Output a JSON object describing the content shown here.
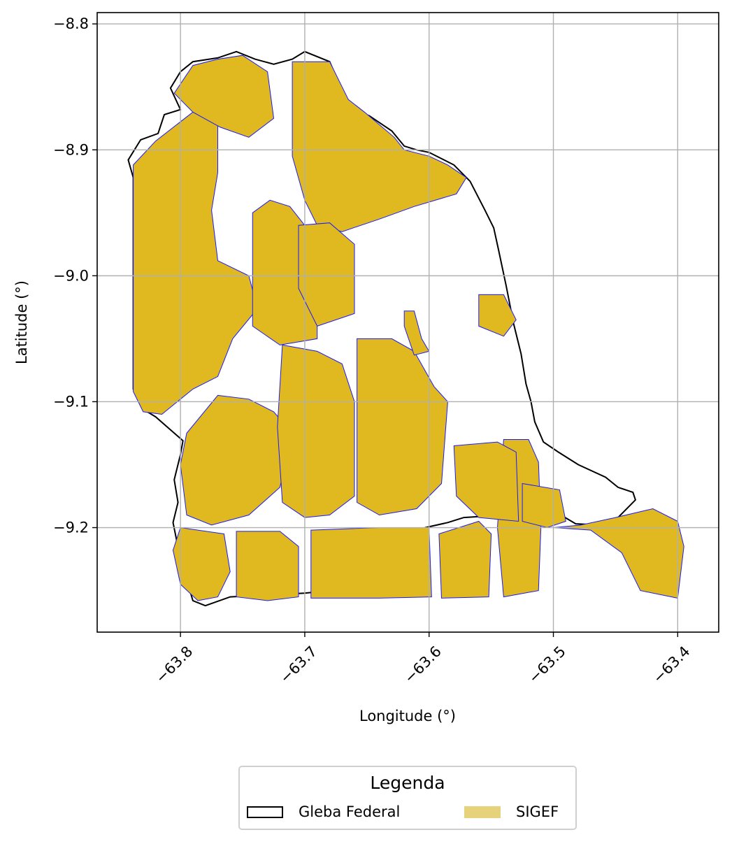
{
  "chart_data": {
    "type": "map",
    "xlabel": "Longitude (°)",
    "ylabel": "Latitude (°)",
    "xlim": [
      -63.867,
      -63.367
    ],
    "ylim": [
      -9.283,
      -8.791
    ],
    "xticks": [
      -63.8,
      -63.7,
      -63.6,
      -63.5,
      -63.4
    ],
    "xtick_labels": [
      "−63.8",
      "−63.7",
      "−63.6",
      "−63.5",
      "−63.4"
    ],
    "yticks": [
      -8.8,
      -8.9,
      -9.0,
      -9.1,
      -9.2
    ],
    "ytick_labels": [
      "−8.8",
      "−8.9",
      "−9.0",
      "−9.1",
      "−9.2"
    ],
    "grid": true,
    "gleba_outline": [
      [
        -63.842,
        -8.908
      ],
      [
        -63.832,
        -8.892
      ],
      [
        -63.818,
        -8.887
      ],
      [
        -63.813,
        -8.872
      ],
      [
        -63.8,
        -8.868
      ],
      [
        -63.808,
        -8.851
      ],
      [
        -63.8,
        -8.838
      ],
      [
        -63.79,
        -8.83
      ],
      [
        -63.77,
        -8.827
      ],
      [
        -63.755,
        -8.822
      ],
      [
        -63.74,
        -8.828
      ],
      [
        -63.725,
        -8.832
      ],
      [
        -63.71,
        -8.828
      ],
      [
        -63.7,
        -8.822
      ],
      [
        -63.68,
        -8.83
      ],
      [
        -63.67,
        -8.853
      ],
      [
        -63.66,
        -8.868
      ],
      [
        -63.648,
        -8.873
      ],
      [
        -63.63,
        -8.885
      ],
      [
        -63.62,
        -8.897
      ],
      [
        -63.61,
        -8.9
      ],
      [
        -63.6,
        -8.902
      ],
      [
        -63.59,
        -8.907
      ],
      [
        -63.58,
        -8.912
      ],
      [
        -63.567,
        -8.925
      ],
      [
        -63.555,
        -8.948
      ],
      [
        -63.548,
        -8.962
      ],
      [
        -63.544,
        -8.98
      ],
      [
        -63.538,
        -9.008
      ],
      [
        -63.532,
        -9.038
      ],
      [
        -63.526,
        -9.062
      ],
      [
        -63.522,
        -9.086
      ],
      [
        -63.518,
        -9.1
      ],
      [
        -63.515,
        -9.116
      ],
      [
        -63.508,
        -9.132
      ],
      [
        -63.496,
        -9.14
      ],
      [
        -63.48,
        -9.15
      ],
      [
        -63.458,
        -9.16
      ],
      [
        -63.448,
        -9.168
      ],
      [
        -63.436,
        -9.172
      ],
      [
        -63.434,
        -9.178
      ],
      [
        -63.448,
        -9.192
      ],
      [
        -63.46,
        -9.198
      ],
      [
        -63.482,
        -9.197
      ],
      [
        -63.494,
        -9.19
      ],
      [
        -63.51,
        -9.188
      ],
      [
        -63.54,
        -9.19
      ],
      [
        -63.572,
        -9.192
      ],
      [
        -63.585,
        -9.196
      ],
      [
        -63.603,
        -9.2
      ],
      [
        -63.62,
        -9.21
      ],
      [
        -63.65,
        -9.232
      ],
      [
        -63.68,
        -9.25
      ],
      [
        -63.7,
        -9.252
      ],
      [
        -63.76,
        -9.255
      ],
      [
        -63.78,
        -9.262
      ],
      [
        -63.79,
        -9.258
      ],
      [
        -63.8,
        -9.225
      ],
      [
        -63.806,
        -9.196
      ],
      [
        -63.802,
        -9.18
      ],
      [
        -63.805,
        -9.162
      ],
      [
        -63.8,
        -9.142
      ],
      [
        -63.798,
        -9.131
      ],
      [
        -63.82,
        -9.112
      ],
      [
        -63.83,
        -9.106
      ],
      [
        -63.838,
        -9.09
      ],
      [
        -63.838,
        -9.06
      ],
      [
        -63.838,
        -9.0
      ],
      [
        -63.838,
        -8.922
      ],
      [
        -63.842,
        -8.908
      ]
    ],
    "sigef_polygons": [
      [
        [
          -63.838,
          -8.912
        ],
        [
          -63.82,
          -8.893
        ],
        [
          -63.79,
          -8.87
        ],
        [
          -63.778,
          -8.862
        ],
        [
          -63.77,
          -8.872
        ],
        [
          -63.77,
          -8.918
        ],
        [
          -63.775,
          -8.948
        ],
        [
          -63.77,
          -8.988
        ],
        [
          -63.745,
          -9.0
        ],
        [
          -63.738,
          -9.026
        ],
        [
          -63.758,
          -9.05
        ],
        [
          -63.77,
          -9.08
        ],
        [
          -63.79,
          -9.09
        ],
        [
          -63.815,
          -9.11
        ],
        [
          -63.83,
          -9.108
        ],
        [
          -63.838,
          -9.092
        ],
        [
          -63.838,
          -8.912
        ]
      ],
      [
        [
          -63.805,
          -8.855
        ],
        [
          -63.79,
          -8.833
        ],
        [
          -63.77,
          -8.828
        ],
        [
          -63.75,
          -8.825
        ],
        [
          -63.73,
          -8.838
        ],
        [
          -63.725,
          -8.875
        ],
        [
          -63.745,
          -8.89
        ],
        [
          -63.768,
          -8.882
        ],
        [
          -63.79,
          -8.87
        ],
        [
          -63.805,
          -8.855
        ]
      ],
      [
        [
          -63.742,
          -8.95
        ],
        [
          -63.728,
          -8.94
        ],
        [
          -63.712,
          -8.945
        ],
        [
          -63.7,
          -8.96
        ],
        [
          -63.69,
          -8.972
        ],
        [
          -63.69,
          -9.05
        ],
        [
          -63.72,
          -9.055
        ],
        [
          -63.742,
          -9.04
        ],
        [
          -63.742,
          -8.95
        ]
      ],
      [
        [
          -63.71,
          -8.83
        ],
        [
          -63.68,
          -8.83
        ],
        [
          -63.665,
          -8.86
        ],
        [
          -63.652,
          -8.87
        ],
        [
          -63.628,
          -8.89
        ],
        [
          -63.62,
          -8.9
        ],
        [
          -63.6,
          -8.905
        ],
        [
          -63.585,
          -8.912
        ],
        [
          -63.57,
          -8.922
        ],
        [
          -63.578,
          -8.935
        ],
        [
          -63.612,
          -8.945
        ],
        [
          -63.64,
          -8.955
        ],
        [
          -63.67,
          -8.965
        ],
        [
          -63.69,
          -8.96
        ],
        [
          -63.7,
          -8.94
        ],
        [
          -63.71,
          -8.905
        ],
        [
          -63.71,
          -8.83
        ]
      ],
      [
        [
          -63.705,
          -8.96
        ],
        [
          -63.68,
          -8.958
        ],
        [
          -63.66,
          -8.975
        ],
        [
          -63.66,
          -9.03
        ],
        [
          -63.69,
          -9.04
        ],
        [
          -63.705,
          -9.01
        ],
        [
          -63.705,
          -8.96
        ]
      ],
      [
        [
          -63.77,
          -9.095
        ],
        [
          -63.745,
          -9.098
        ],
        [
          -63.725,
          -9.108
        ],
        [
          -63.71,
          -9.125
        ],
        [
          -63.72,
          -9.168
        ],
        [
          -63.745,
          -9.19
        ],
        [
          -63.775,
          -9.198
        ],
        [
          -63.795,
          -9.19
        ],
        [
          -63.8,
          -9.15
        ],
        [
          -63.795,
          -9.125
        ],
        [
          -63.77,
          -9.095
        ]
      ],
      [
        [
          -63.718,
          -9.055
        ],
        [
          -63.69,
          -9.06
        ],
        [
          -63.67,
          -9.07
        ],
        [
          -63.66,
          -9.1
        ],
        [
          -63.66,
          -9.175
        ],
        [
          -63.68,
          -9.19
        ],
        [
          -63.7,
          -9.192
        ],
        [
          -63.718,
          -9.18
        ],
        [
          -63.722,
          -9.12
        ],
        [
          -63.718,
          -9.055
        ]
      ],
      [
        [
          -63.658,
          -9.05
        ],
        [
          -63.63,
          -9.05
        ],
        [
          -63.612,
          -9.06
        ],
        [
          -63.596,
          -9.088
        ],
        [
          -63.585,
          -9.1
        ],
        [
          -63.59,
          -9.165
        ],
        [
          -63.61,
          -9.185
        ],
        [
          -63.64,
          -9.19
        ],
        [
          -63.658,
          -9.18
        ],
        [
          -63.658,
          -9.05
        ]
      ],
      [
        [
          -63.8,
          -9.2
        ],
        [
          -63.806,
          -9.218
        ],
        [
          -63.8,
          -9.245
        ],
        [
          -63.786,
          -9.258
        ],
        [
          -63.77,
          -9.255
        ],
        [
          -63.76,
          -9.235
        ],
        [
          -63.765,
          -9.205
        ],
        [
          -63.8,
          -9.2
        ]
      ],
      [
        [
          -63.755,
          -9.203
        ],
        [
          -63.72,
          -9.203
        ],
        [
          -63.705,
          -9.215
        ],
        [
          -63.705,
          -9.255
        ],
        [
          -63.73,
          -9.258
        ],
        [
          -63.755,
          -9.255
        ],
        [
          -63.755,
          -9.203
        ]
      ],
      [
        [
          -63.695,
          -9.202
        ],
        [
          -63.64,
          -9.2
        ],
        [
          -63.6,
          -9.2
        ],
        [
          -63.598,
          -9.255
        ],
        [
          -63.64,
          -9.256
        ],
        [
          -63.695,
          -9.256
        ],
        [
          -63.695,
          -9.202
        ]
      ],
      [
        [
          -63.56,
          -9.195
        ],
        [
          -63.55,
          -9.205
        ],
        [
          -63.552,
          -9.255
        ],
        [
          -63.59,
          -9.256
        ],
        [
          -63.592,
          -9.205
        ],
        [
          -63.56,
          -9.195
        ]
      ],
      [
        [
          -63.54,
          -9.13
        ],
        [
          -63.52,
          -9.13
        ],
        [
          -63.512,
          -9.148
        ],
        [
          -63.51,
          -9.2
        ],
        [
          -63.512,
          -9.25
        ],
        [
          -63.54,
          -9.255
        ],
        [
          -63.545,
          -9.2
        ],
        [
          -63.54,
          -9.13
        ]
      ],
      [
        [
          -63.5,
          -9.2
        ],
        [
          -63.47,
          -9.202
        ],
        [
          -63.445,
          -9.22
        ],
        [
          -63.43,
          -9.25
        ],
        [
          -63.4,
          -9.256
        ],
        [
          -63.395,
          -9.215
        ],
        [
          -63.4,
          -9.195
        ],
        [
          -63.42,
          -9.185
        ],
        [
          -63.45,
          -9.192
        ],
        [
          -63.478,
          -9.198
        ],
        [
          -63.5,
          -9.2
        ]
      ],
      [
        [
          -63.525,
          -9.165
        ],
        [
          -63.495,
          -9.17
        ],
        [
          -63.49,
          -9.195
        ],
        [
          -63.505,
          -9.2
        ],
        [
          -63.525,
          -9.195
        ],
        [
          -63.525,
          -9.165
        ]
      ],
      [
        [
          -63.58,
          -9.135
        ],
        [
          -63.545,
          -9.132
        ],
        [
          -63.53,
          -9.14
        ],
        [
          -63.528,
          -9.195
        ],
        [
          -63.56,
          -9.192
        ],
        [
          -63.578,
          -9.175
        ],
        [
          -63.58,
          -9.135
        ]
      ],
      [
        [
          -63.56,
          -9.015
        ],
        [
          -63.54,
          -9.015
        ],
        [
          -63.53,
          -9.035
        ],
        [
          -63.54,
          -9.048
        ],
        [
          -63.56,
          -9.04
        ],
        [
          -63.56,
          -9.015
        ]
      ],
      [
        [
          -63.62,
          -9.028
        ],
        [
          -63.612,
          -9.028
        ],
        [
          -63.606,
          -9.05
        ],
        [
          -63.6,
          -9.06
        ],
        [
          -63.612,
          -9.063
        ],
        [
          -63.62,
          -9.04
        ],
        [
          -63.62,
          -9.028
        ]
      ]
    ],
    "legend": {
      "title": "Legenda",
      "entries": [
        {
          "label": "Gleba Federal",
          "fill": "#ffffff",
          "edge": "#000000"
        },
        {
          "label": "SIGEF",
          "fill": "#e6d27a",
          "edge": "#e6d27a"
        }
      ],
      "placement": "bottom-center, below axes"
    },
    "colors": {
      "sigef_fill": "#dfb91f",
      "sigef_edge": "#1a1aff",
      "gleba_edge": "#000000",
      "grid": "#b0b0b0"
    }
  }
}
